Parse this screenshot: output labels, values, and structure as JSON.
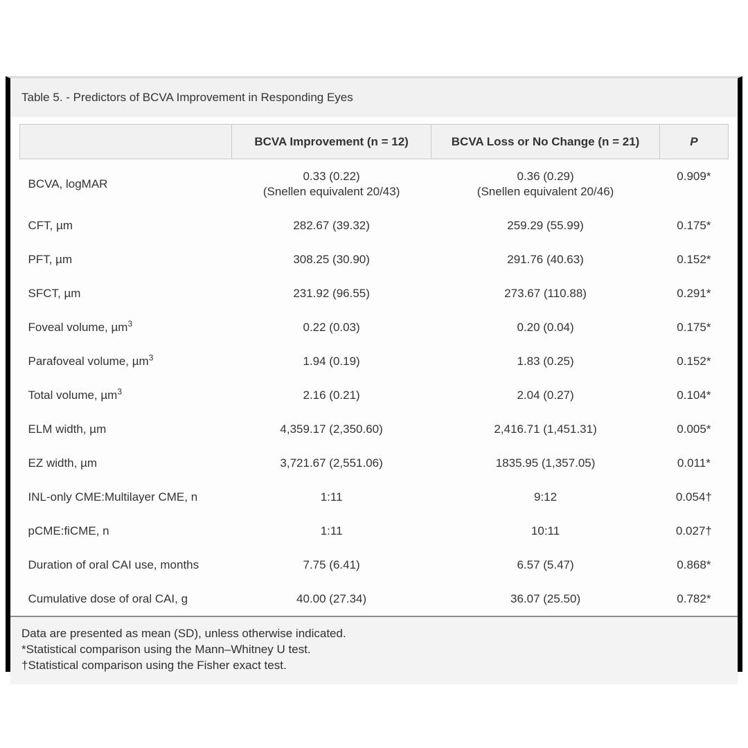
{
  "table": {
    "title": "Table 5. - Predictors of BCVA Improvement in Responding Eyes",
    "columns": {
      "rowhead": "",
      "improvement": "BCVA Improvement (n = 12)",
      "loss": "BCVA Loss or No Change (n = 21)",
      "p": "P"
    },
    "rows": [
      {
        "label": "BCVA, logMAR",
        "improvement": [
          "0.33 (0.22)",
          "(Snellen equivalent 20/43)"
        ],
        "loss": [
          "0.36 (0.29)",
          "(Snellen equivalent 20/46)"
        ],
        "p": "0.909*"
      },
      {
        "label": "CFT, µm",
        "improvement": [
          "282.67 (39.32)"
        ],
        "loss": [
          "259.29 (55.99)"
        ],
        "p": "0.175*"
      },
      {
        "label": "PFT, µm",
        "improvement": [
          "308.25 (30.90)"
        ],
        "loss": [
          "291.76 (40.63)"
        ],
        "p": "0.152*"
      },
      {
        "label": "SFCT, µm",
        "improvement": [
          "231.92 (96.55)"
        ],
        "loss": [
          "273.67 (110.88)"
        ],
        "p": "0.291*"
      },
      {
        "label": "Foveal volume, µm",
        "label_sup": "3",
        "improvement": [
          "0.22 (0.03)"
        ],
        "loss": [
          "0.20 (0.04)"
        ],
        "p": "0.175*"
      },
      {
        "label": "Parafoveal volume, µm",
        "label_sup": "3",
        "improvement": [
          "1.94 (0.19)"
        ],
        "loss": [
          "1.83 (0.25)"
        ],
        "p": "0.152*"
      },
      {
        "label": "Total volume, µm",
        "label_sup": "3",
        "improvement": [
          "2.16 (0.21)"
        ],
        "loss": [
          "2.04 (0.27)"
        ],
        "p": "0.104*"
      },
      {
        "label": "ELM width, µm",
        "improvement": [
          "4,359.17 (2,350.60)"
        ],
        "loss": [
          "2,416.71 (1,451.31)"
        ],
        "p": "0.005*"
      },
      {
        "label": "EZ width, µm",
        "improvement": [
          "3,721.67 (2,551.06)"
        ],
        "loss": [
          "1835.95 (1,357.05)"
        ],
        "p": "0.011*"
      },
      {
        "label": "INL-only CME:Multilayer CME, n",
        "improvement": [
          "1:11"
        ],
        "loss": [
          "9:12"
        ],
        "p": "0.054†"
      },
      {
        "label": "pCME:fiCME, n",
        "improvement": [
          "1:11"
        ],
        "loss": [
          "10:11"
        ],
        "p": "0.027†"
      },
      {
        "label": "Duration of oral CAI use, months",
        "improvement": [
          "7.75 (6.41)"
        ],
        "loss": [
          "6.57 (5.47)"
        ],
        "p": "0.868*"
      },
      {
        "label": "Cumulative dose of oral CAI, g",
        "improvement": [
          "40.00 (27.34)"
        ],
        "loss": [
          "36.07 (25.50)"
        ],
        "p": "0.782*"
      }
    ],
    "footnotes": [
      "Data are presented as mean (SD), unless otherwise indicated.",
      "*Statistical comparison using the Mann–Whitney U test.",
      "†Statistical comparison using the Fisher exact test."
    ]
  },
  "colors": {
    "accent_border": "#000000",
    "title_bg": "#f1f1f1",
    "header_bg": "#f1f1f1",
    "footnote_bg": "#f3f3f3",
    "text": "#333333"
  }
}
